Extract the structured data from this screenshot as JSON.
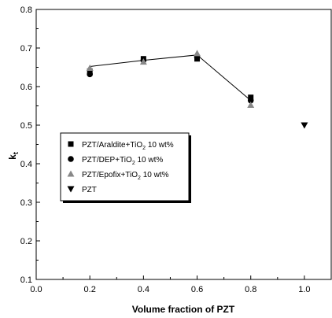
{
  "chart_data": {
    "type": "scatter",
    "xlabel": "Volume fraction of PZT",
    "ylabel": "k",
    "ylabel_subscript": "t",
    "xlim": [
      0.0,
      1.1
    ],
    "ylim": [
      0.1,
      0.8
    ],
    "x_ticks": [
      "0.0",
      "0.2",
      "0.4",
      "0.6",
      "0.8",
      "1.0"
    ],
    "y_ticks": [
      "0.1",
      "0.2",
      "0.3",
      "0.4",
      "0.5",
      "0.6",
      "0.7",
      "0.8"
    ],
    "grid": false,
    "legend_position": "middle-left",
    "series": [
      {
        "name": "PZT/Araldite+TiO2 10 wt%",
        "legend_parts": [
          "PZT/Araldite+TiO",
          "2",
          " 10 wt%"
        ],
        "marker": "square",
        "color": "#000000",
        "x": [
          0.2,
          0.4,
          0.6,
          0.8
        ],
        "y": [
          0.64,
          0.672,
          0.672,
          0.572
        ]
      },
      {
        "name": "PZT/DEP+TiO2 10 wt%",
        "legend_parts": [
          "PZT/DEP+TiO",
          "2",
          " 10 wt%"
        ],
        "marker": "circle",
        "color": "#000000",
        "x": [
          0.2,
          0.4,
          0.6,
          0.8
        ],
        "y": [
          0.632,
          0.668,
          0.676,
          0.564
        ]
      },
      {
        "name": "PZT/Epofix+TiO2 10 wt%",
        "legend_parts": [
          "PZT/Epofix+TiO",
          "2",
          " 10 wt%"
        ],
        "marker": "triangle-up",
        "color": "#888888",
        "x": [
          0.2,
          0.4,
          0.6,
          0.8
        ],
        "y": [
          0.648,
          0.664,
          0.686,
          0.552
        ]
      },
      {
        "name": "PZT",
        "legend_parts": [
          "PZT",
          "",
          ""
        ],
        "marker": "triangle-down",
        "color": "#000000",
        "x": [
          1.0
        ],
        "y": [
          0.5
        ]
      }
    ],
    "trend_line": {
      "x": [
        0.2,
        0.4,
        0.6,
        0.8
      ],
      "y": [
        0.652,
        0.668,
        0.682,
        0.564
      ]
    }
  }
}
